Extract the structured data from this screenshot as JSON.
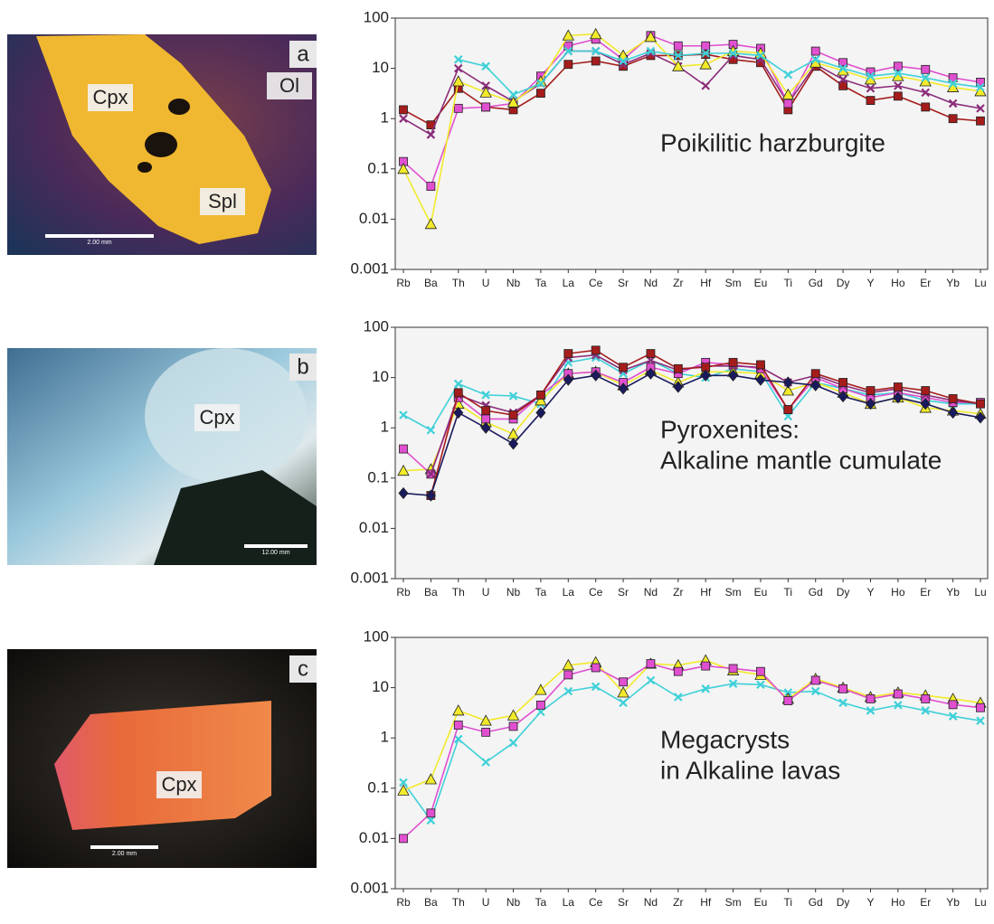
{
  "chart_data": [
    {
      "type": "line",
      "log_y": true,
      "grid": false,
      "annotation": [
        "Poikilitic harzburgite"
      ],
      "photo": {
        "panel": "a",
        "labels": [
          "Cpx",
          "Ol",
          "Spl"
        ],
        "scale_bar": "2.00 mm"
      },
      "categories": [
        "Rb",
        "Ba",
        "Th",
        "U",
        "Nb",
        "Ta",
        "La",
        "Ce",
        "Sr",
        "Nd",
        "Zr",
        "Hf",
        "Sm",
        "Eu",
        "Ti",
        "Gd",
        "Dy",
        "Y",
        "Ho",
        "Er",
        "Yb",
        "Lu"
      ],
      "ylim": [
        0.001,
        100
      ],
      "yticks": [
        0.001,
        0.01,
        0.1,
        1,
        10,
        100
      ],
      "series": [
        {
          "color": "#a51c1c",
          "marker": "square",
          "values": [
            1.5,
            0.75,
            4,
            1.7,
            1.5,
            3.2,
            12,
            14,
            11,
            18,
            18,
            19,
            15,
            13,
            1.5,
            11,
            4.5,
            2.3,
            2.8,
            1.7,
            1.0,
            0.9
          ]
        },
        {
          "color": "#8b2d7a",
          "marker": "x",
          "values": [
            1.0,
            0.48,
            10,
            4.5,
            2.2,
            5,
            22,
            22,
            12,
            20,
            11,
            4.5,
            18,
            15,
            2,
            12,
            6,
            4,
            4.5,
            3.3,
            2,
            1.6
          ]
        },
        {
          "color": "#e04fd0",
          "marker": "square",
          "values": [
            0.14,
            0.045,
            1.6,
            1.7,
            2.0,
            7,
            28,
            38,
            15,
            45,
            28,
            28,
            30,
            25,
            2.0,
            22,
            13,
            8.5,
            11,
            9.5,
            6.5,
            5.3
          ]
        },
        {
          "color": "#f2ea2a",
          "marker": "triangle",
          "values": [
            0.1,
            0.008,
            5.5,
            3.3,
            2.1,
            5.5,
            45,
            48,
            18,
            42,
            11,
            12,
            22,
            20,
            3,
            13,
            9,
            6,
            7,
            5.5,
            4.2,
            3.5
          ]
        },
        {
          "color": "#3fd0d8",
          "marker": "x",
          "values": [
            null,
            null,
            15,
            11,
            3,
            5,
            22,
            22,
            14,
            22,
            18,
            20,
            20,
            18,
            7.5,
            15,
            10,
            7,
            8,
            6.5,
            5,
            4.2
          ]
        }
      ]
    },
    {
      "type": "line",
      "log_y": true,
      "grid": false,
      "annotation": [
        "Pyroxenites:",
        "Alkaline mantle cumulate"
      ],
      "photo": {
        "panel": "b",
        "labels": [
          "Cpx"
        ],
        "scale_bar": "12.00 mm"
      },
      "categories": [
        "Rb",
        "Ba",
        "Th",
        "U",
        "Nb",
        "Ta",
        "La",
        "Ce",
        "Sr",
        "Nd",
        "Zr",
        "Hf",
        "Sm",
        "Eu",
        "Ti",
        "Gd",
        "Dy",
        "Y",
        "Ho",
        "Er",
        "Yb",
        "Lu"
      ],
      "ylim": [
        0.001,
        100
      ],
      "yticks": [
        0.001,
        0.01,
        0.1,
        1,
        10,
        100
      ],
      "series": [
        {
          "color": "#3fd0d8",
          "marker": "x",
          "values": [
            1.8,
            0.9,
            7.5,
            4.5,
            4.3,
            3,
            20,
            25,
            12,
            22,
            12,
            10,
            15,
            13,
            1.7,
            8,
            6,
            4.5,
            5,
            3.5,
            3,
            3
          ]
        },
        {
          "color": "#f2ea2a",
          "marker": "triangle",
          "values": [
            0.14,
            0.15,
            3,
            1.3,
            0.75,
            3.5,
            12,
            13,
            7,
            14,
            8,
            13,
            13,
            12,
            5.5,
            8,
            5,
            3,
            4,
            2.5,
            2.2,
            1.9
          ]
        },
        {
          "color": "#e04fd0",
          "marker": "square",
          "values": [
            0.38,
            0.12,
            4,
            1.5,
            1.5,
            4.5,
            12,
            13,
            8,
            16,
            12,
            20,
            18,
            15,
            2.3,
            10,
            6,
            4,
            5,
            4,
            3.2,
            3.2
          ]
        },
        {
          "color": "#8b2d7a",
          "marker": "x",
          "values": [
            null,
            0.12,
            4.5,
            2.8,
            2,
            4.5,
            25,
            28,
            14,
            22,
            14,
            17,
            17,
            16,
            8,
            11,
            7,
            5,
            6,
            4.5,
            3.5,
            3
          ]
        },
        {
          "color": "#a51c1c",
          "marker": "square",
          "values": [
            null,
            0.045,
            5,
            2.2,
            1.8,
            4.5,
            30,
            35,
            16,
            30,
            15,
            16,
            20,
            18,
            2.3,
            12,
            8,
            5.5,
            6.5,
            5.5,
            3.8,
            3
          ]
        },
        {
          "color": "#1a1a5e",
          "marker": "diamond",
          "values": [
            0.05,
            0.045,
            2,
            1.0,
            0.48,
            2,
            9,
            11,
            6,
            12,
            6.5,
            11,
            11,
            9,
            8,
            7,
            4.2,
            3,
            4,
            3,
            2,
            1.6
          ]
        }
      ]
    },
    {
      "type": "line",
      "log_y": true,
      "grid": false,
      "annotation": [
        "Megacrysts",
        "in Alkaline lavas"
      ],
      "photo": {
        "panel": "c",
        "labels": [
          "Cpx"
        ],
        "scale_bar": "2.00 mm"
      },
      "categories": [
        "Rb",
        "Ba",
        "Th",
        "U",
        "Nb",
        "Ta",
        "La",
        "Ce",
        "Sr",
        "Nd",
        "Zr",
        "Hf",
        "Sm",
        "Eu",
        "Ti",
        "Gd",
        "Dy",
        "Y",
        "Ho",
        "Er",
        "Yb",
        "Lu"
      ],
      "ylim": [
        0.001,
        100
      ],
      "yticks": [
        0.001,
        0.01,
        0.1,
        1,
        10,
        100
      ],
      "series": [
        {
          "color": "#3fd0d8",
          "marker": "x",
          "values": [
            0.13,
            0.023,
            0.95,
            0.33,
            0.8,
            3.3,
            8.5,
            10.5,
            5,
            14,
            6.5,
            9.5,
            12,
            11.5,
            8,
            8.5,
            5,
            3.5,
            4.5,
            3.5,
            2.7,
            2.2
          ]
        },
        {
          "color": "#f2ea2a",
          "marker": "triangle",
          "values": [
            0.09,
            0.15,
            3.5,
            2.2,
            2.8,
            9,
            28,
            32,
            8,
            30,
            28,
            35,
            22,
            18,
            6,
            15,
            10,
            6.5,
            8,
            7,
            6,
            5
          ]
        },
        {
          "color": "#e04fd0",
          "marker": "square",
          "values": [
            0.01,
            0.032,
            1.8,
            1.3,
            1.7,
            4.5,
            18,
            25,
            13,
            30,
            21,
            27,
            24,
            21,
            5.5,
            14,
            9.5,
            6,
            7.5,
            6,
            4.6,
            4
          ]
        }
      ]
    }
  ]
}
